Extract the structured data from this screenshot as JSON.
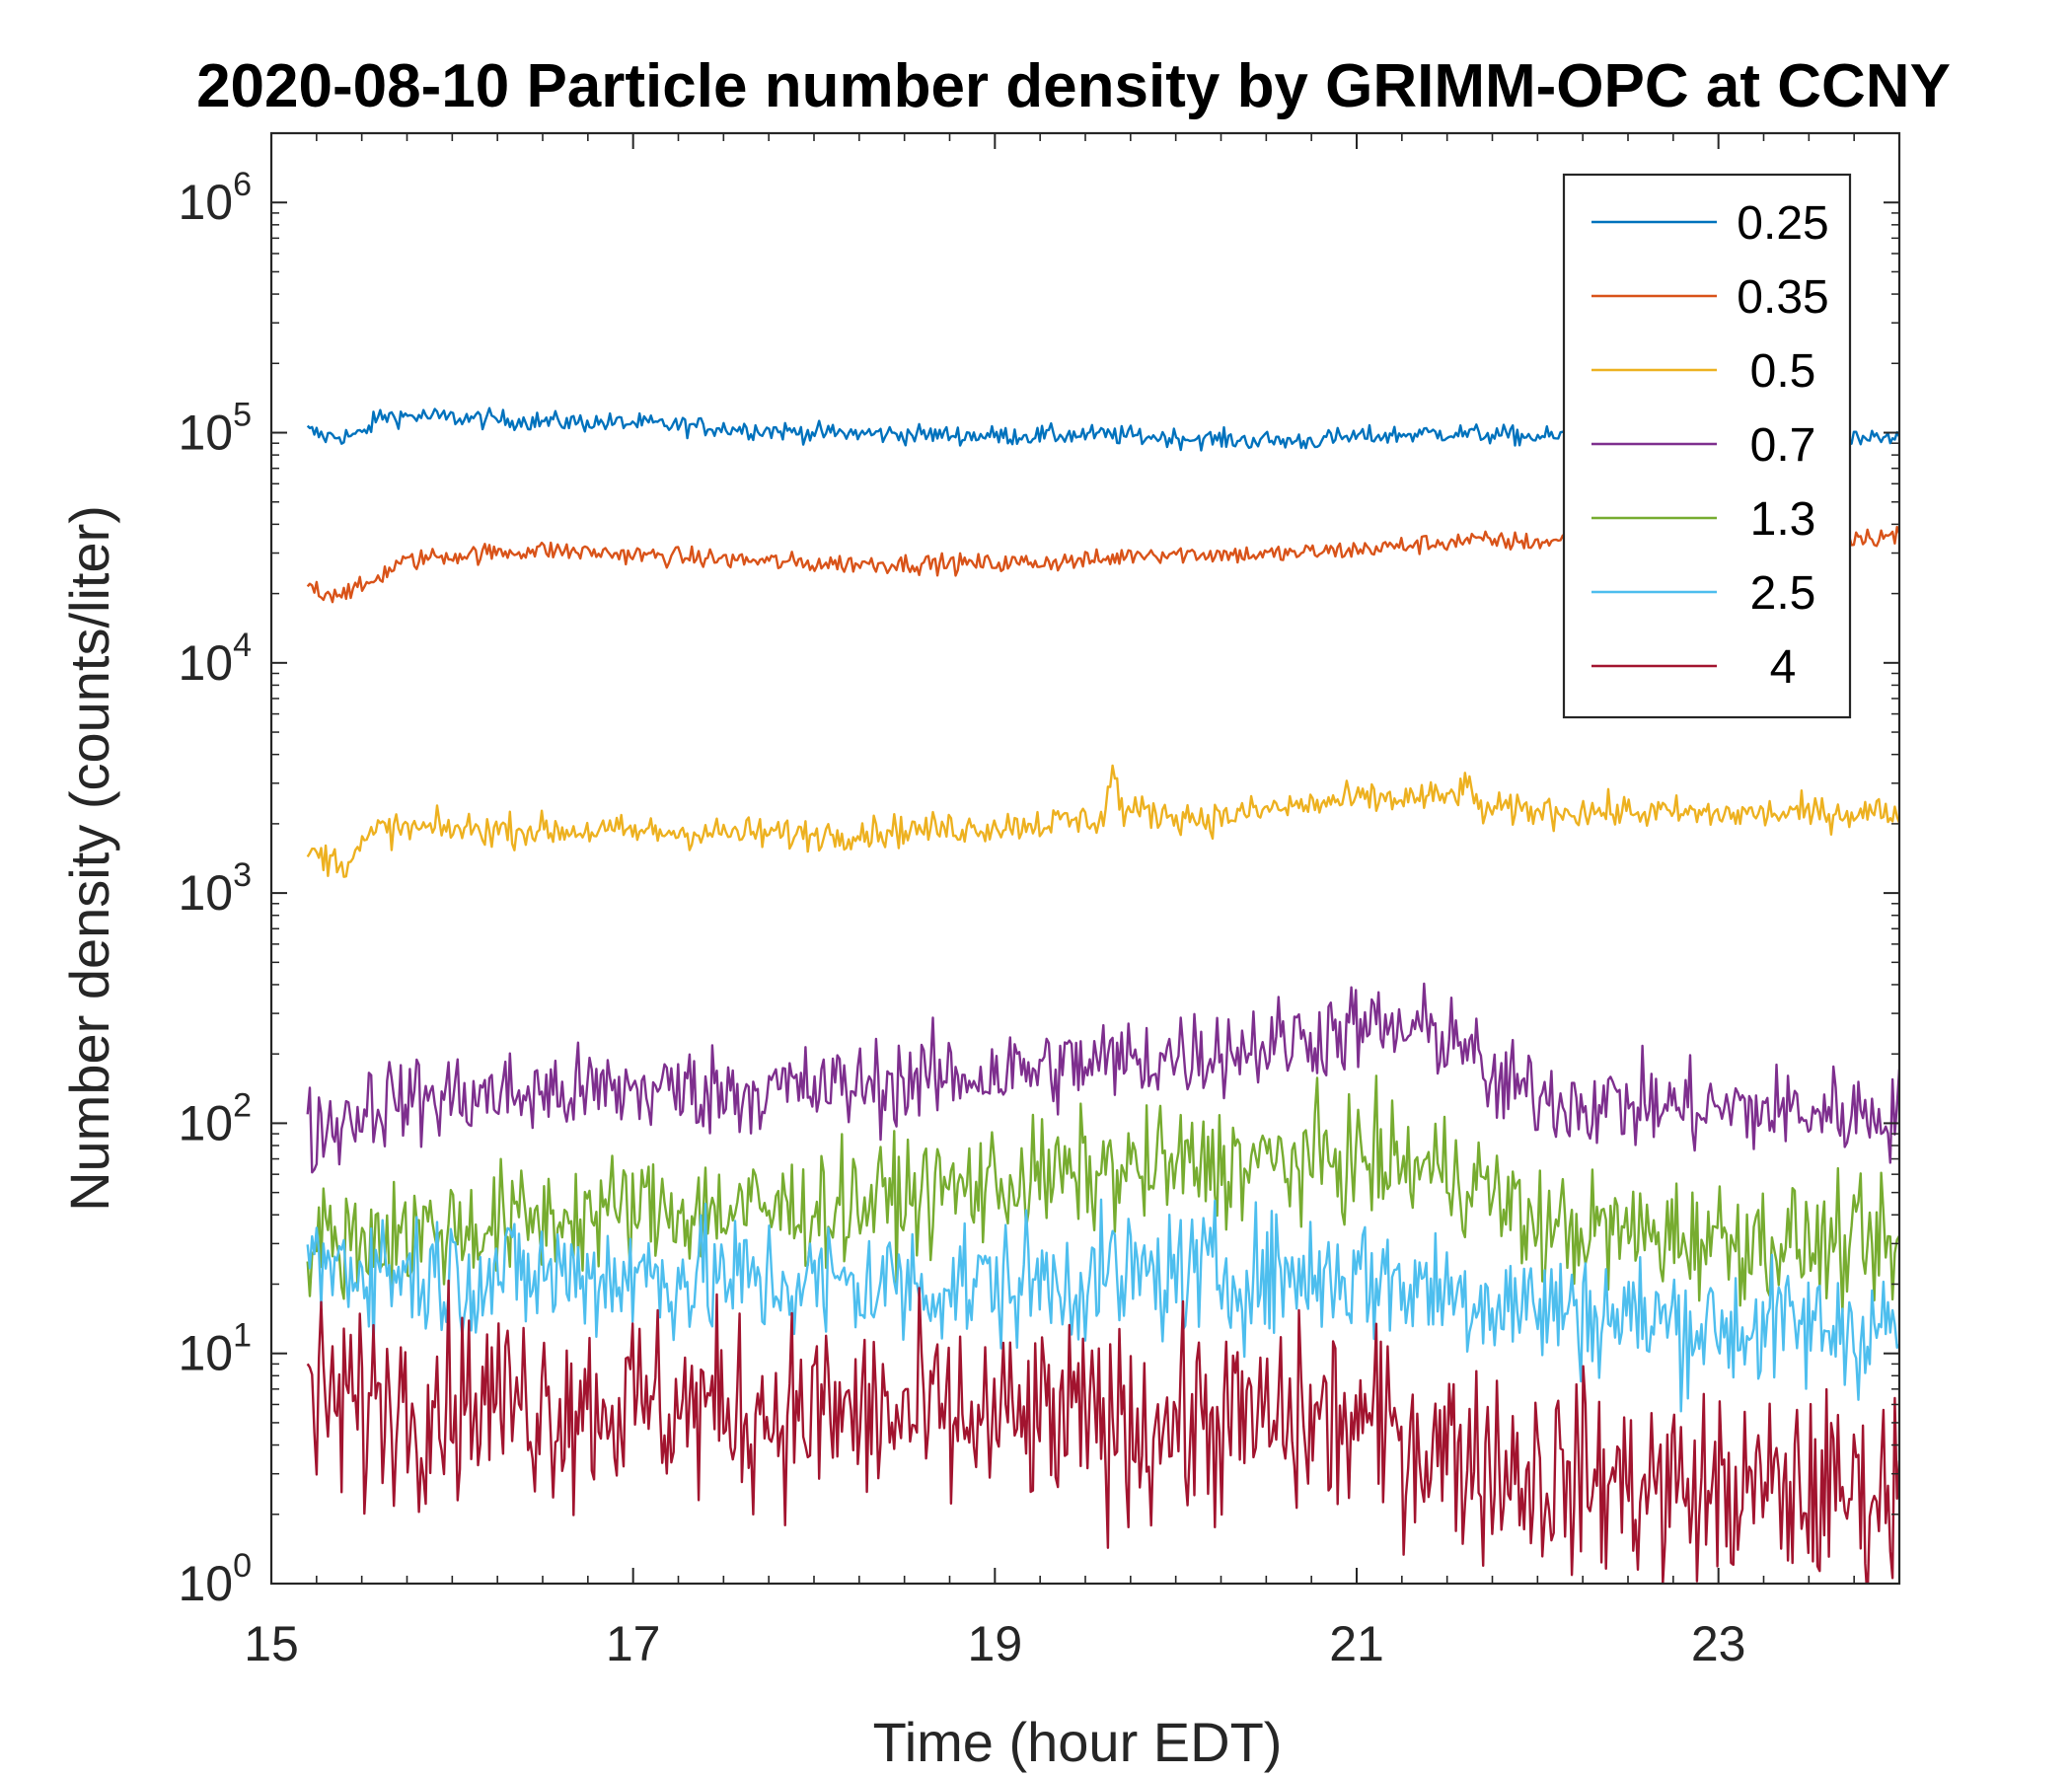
{
  "chart_data": {
    "type": "line",
    "title": "2020-08-10 Particle number density by GRIMM-OPC at CCNY",
    "xlabel": "Time (hour EDT)",
    "ylabel": "Number density (counts/liter)",
    "xlim": [
      15,
      24
    ],
    "ylim": [
      1,
      2000000
    ],
    "yscale": "log",
    "x_ticks": [
      15,
      17,
      19,
      21,
      23
    ],
    "x_tick_labels": [
      "15",
      "17",
      "19",
      "21",
      "23"
    ],
    "y_ticks": [
      1,
      10,
      100,
      1000,
      10000,
      100000,
      1000000
    ],
    "y_tick_labels": [
      {
        "base": "10",
        "exp": "0"
      },
      {
        "base": "10",
        "exp": "1"
      },
      {
        "base": "10",
        "exp": "2"
      },
      {
        "base": "10",
        "exp": "3"
      },
      {
        "base": "10",
        "exp": "4"
      },
      {
        "base": "10",
        "exp": "5"
      },
      {
        "base": "10",
        "exp": "6"
      }
    ],
    "legend_position": "top-right",
    "series": [
      {
        "name": "0.25",
        "color": "#0072BD",
        "noise": 0.03,
        "keys": [
          [
            15.2,
            102000
          ],
          [
            15.3,
            96000
          ],
          [
            15.5,
            98000
          ],
          [
            15.6,
            118000
          ],
          [
            15.8,
            118000
          ],
          [
            16.5,
            112000
          ],
          [
            17,
            110000
          ],
          [
            18,
            100000
          ],
          [
            19,
            97000
          ],
          [
            19.6,
            98000
          ],
          [
            20.3,
            93000
          ],
          [
            20.7,
            92000
          ],
          [
            21,
            96000
          ],
          [
            21.5,
            100000
          ],
          [
            22,
            96000
          ],
          [
            23,
            95000
          ],
          [
            24,
            93000
          ]
        ]
      },
      {
        "name": "0.35",
        "color": "#D95319",
        "noise": 0.03,
        "keys": [
          [
            15.2,
            22000
          ],
          [
            15.3,
            20000
          ],
          [
            15.5,
            21000
          ],
          [
            15.7,
            27000
          ],
          [
            15.9,
            29000
          ],
          [
            16.5,
            31000
          ],
          [
            17,
            29500
          ],
          [
            18,
            27000
          ],
          [
            19,
            27000
          ],
          [
            19.6,
            28000
          ],
          [
            19.8,
            30000
          ],
          [
            20.5,
            29500
          ],
          [
            21,
            31000
          ],
          [
            21.6,
            34000
          ],
          [
            22,
            33500
          ],
          [
            23,
            35000
          ],
          [
            24,
            35500
          ]
        ]
      },
      {
        "name": "0.5",
        "color": "#EDB120",
        "noise": 0.05,
        "keys": [
          [
            15.2,
            1500
          ],
          [
            15.4,
            1350
          ],
          [
            15.6,
            1900
          ],
          [
            16,
            1900
          ],
          [
            17,
            1850
          ],
          [
            18,
            1800
          ],
          [
            19,
            1950
          ],
          [
            19.6,
            2100
          ],
          [
            19.65,
            3500
          ],
          [
            19.7,
            2300
          ],
          [
            20.2,
            2100
          ],
          [
            20.5,
            2300
          ],
          [
            21,
            2550
          ],
          [
            21.5,
            2600
          ],
          [
            21.6,
            2900
          ],
          [
            21.7,
            2300
          ],
          [
            22.5,
            2250
          ],
          [
            23,
            2200
          ],
          [
            24,
            2250
          ]
        ]
      },
      {
        "name": "0.7",
        "color": "#7E2F8E",
        "noise": 0.14,
        "keys": [
          [
            15.2,
            90
          ],
          [
            15.35,
            100
          ],
          [
            15.6,
            125
          ],
          [
            16,
            130
          ],
          [
            17,
            140
          ],
          [
            18,
            140
          ],
          [
            19,
            165
          ],
          [
            19.8,
            190
          ],
          [
            20.5,
            220
          ],
          [
            21,
            260
          ],
          [
            21.6,
            240
          ],
          [
            21.7,
            150
          ],
          [
            22.2,
            125
          ],
          [
            23,
            115
          ],
          [
            24,
            110
          ]
        ]
      },
      {
        "name": "1.3",
        "color": "#77AC30",
        "noise": 0.18,
        "keys": [
          [
            15.2,
            30
          ],
          [
            16,
            35
          ],
          [
            17,
            42
          ],
          [
            18,
            42
          ],
          [
            19,
            55
          ],
          [
            20,
            65
          ],
          [
            21,
            70
          ],
          [
            21.6,
            60
          ],
          [
            22,
            35
          ],
          [
            23,
            32
          ],
          [
            24,
            28
          ]
        ]
      },
      {
        "name": "2.5",
        "color": "#4DBEEE",
        "noise": 0.2,
        "keys": [
          [
            15.2,
            25
          ],
          [
            16,
            22
          ],
          [
            17,
            22
          ],
          [
            18,
            20
          ],
          [
            19,
            20
          ],
          [
            20,
            22
          ],
          [
            21,
            22
          ],
          [
            22,
            16
          ],
          [
            23,
            13
          ],
          [
            24,
            13
          ]
        ]
      },
      {
        "name": "4",
        "color": "#A2142F",
        "noise": 0.3,
        "keys": [
          [
            15.2,
            6
          ],
          [
            16,
            6.5
          ],
          [
            17,
            6
          ],
          [
            18,
            5.5
          ],
          [
            19,
            5
          ],
          [
            20,
            5
          ],
          [
            21,
            5
          ],
          [
            22,
            3
          ],
          [
            23,
            2.5
          ],
          [
            24,
            2.5
          ]
        ]
      }
    ]
  }
}
